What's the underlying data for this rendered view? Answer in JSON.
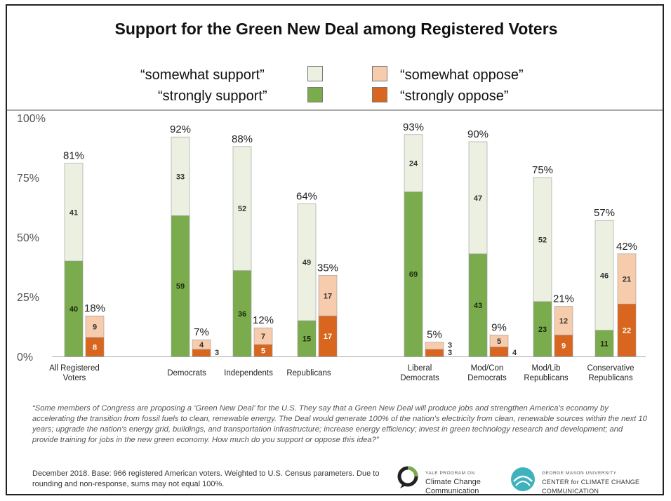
{
  "title": "Support for the Green New Deal among Registered Voters",
  "legend": {
    "somewhat_support": "“somewhat support”",
    "strongly_support": "“strongly support”",
    "somewhat_oppose": "“somewhat oppose”",
    "strongly_oppose": "“strongly oppose”"
  },
  "colors": {
    "somewhat_support": "#ecf0e1",
    "strongly_support": "#7aac4e",
    "somewhat_oppose": "#f6ccad",
    "strongly_oppose": "#d9661e"
  },
  "chart_data": {
    "type": "bar",
    "stacked": true,
    "y_ticks": [
      "0%",
      "25%",
      "50%",
      "75%",
      "100%"
    ],
    "ylim": [
      0,
      100
    ],
    "grid": false,
    "legend_position": "top",
    "categories": [
      "All Registered Voters",
      "Democrats",
      "Independents",
      "Republicans",
      "Liberal Democrats",
      "Mod/Con Democrats",
      "Mod/Lib Republicans",
      "Conservative Republicans"
    ],
    "support": {
      "strongly": [
        40,
        59,
        36,
        15,
        69,
        43,
        23,
        11
      ],
      "somewhat": [
        41,
        33,
        52,
        49,
        24,
        47,
        52,
        46
      ],
      "total_labels": [
        "81%",
        "92%",
        "88%",
        "64%",
        "93%",
        "90%",
        "75%",
        "57%"
      ]
    },
    "oppose": {
      "strongly": [
        8,
        3,
        5,
        17,
        3,
        4,
        9,
        22
      ],
      "somewhat": [
        9,
        4,
        7,
        17,
        3,
        5,
        12,
        21
      ],
      "total_labels": [
        "18%",
        "7%",
        "12%",
        "35%",
        "5%",
        "9%",
        "21%",
        "42%"
      ]
    }
  },
  "footnote": "“Some members of Congress are proposing a ‘Green New Deal’ for the U.S. They say that a Green New Deal will produce jobs and strengthen America’s economy by accelerating the transition from fossil fuels to clean, renewable energy. The Deal would generate 100% of the nation’s electricity from clean, renewable sources within the next 10 years; upgrade the nation’s energy grid, buildings, and transportation infrastructure; increase energy efficiency; invest in green technology research and development; and provide training for jobs in the new green economy. How much do you support or oppose this idea?”",
  "source": "December 2018. Base: 966 registered American voters. Weighted to U.S. Census parameters. Due to rounding and non-response, sums may not equal 100%.",
  "logos": {
    "yale_small": "YALE PROGRAM ON",
    "yale_name": "Climate Change Communication",
    "gmu_small": "GEORGE MASON UNIVERSITY",
    "gmu_name": "CENTER for CLIMATE CHANGE COMMUNICATION"
  }
}
